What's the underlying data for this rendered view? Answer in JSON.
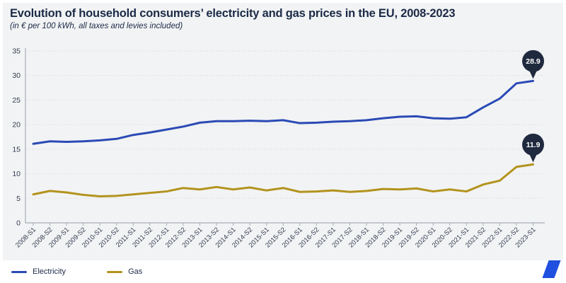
{
  "header": {
    "title": "Evolution of household consumers’ electricity and gas prices in the EU, 2008-2023",
    "subtitle": "(in € per 100 kWh, all taxes and levies included)"
  },
  "legend": [
    {
      "label": "Electricity",
      "color": "#2a4ab5"
    },
    {
      "label": "Gas",
      "color": "#b3931e"
    }
  ],
  "chart_data": {
    "type": "line",
    "categories": [
      "2008-S1",
      "2008-S2",
      "2009-S1",
      "2009-S2",
      "2010-S1",
      "2010-S2",
      "2011-S1",
      "2011-S2",
      "2012-S1",
      "2012-S2",
      "2013-S1",
      "2013-S2",
      "2014-S1",
      "2014-S2",
      "2015-S1",
      "2015-S2",
      "2016-S1",
      "2016-S2",
      "2017-S1",
      "2017-S2",
      "2018-S1",
      "2018-S2",
      "2019-S1",
      "2019-S2",
      "2020-S1",
      "2020-S2",
      "2021-S1",
      "2021-S2",
      "2022-S1",
      "2022-S2",
      "2023-S1"
    ],
    "series": [
      {
        "name": "Electricity",
        "color": "#2a4ab5",
        "values": [
          16.1,
          16.6,
          16.5,
          16.6,
          16.8,
          17.1,
          17.9,
          18.4,
          19.0,
          19.6,
          20.4,
          20.7,
          20.7,
          20.8,
          20.7,
          20.9,
          20.3,
          20.4,
          20.6,
          20.7,
          20.9,
          21.3,
          21.6,
          21.7,
          21.3,
          21.2,
          21.5,
          23.5,
          25.3,
          28.4,
          28.9
        ],
        "end_label": "28.9"
      },
      {
        "name": "Gas",
        "color": "#b3931e",
        "values": [
          5.8,
          6.5,
          6.2,
          5.7,
          5.4,
          5.5,
          5.8,
          6.1,
          6.4,
          7.1,
          6.8,
          7.3,
          6.8,
          7.2,
          6.6,
          7.1,
          6.3,
          6.4,
          6.6,
          6.3,
          6.5,
          6.9,
          6.8,
          7.0,
          6.4,
          6.8,
          6.4,
          7.8,
          8.6,
          11.4,
          11.9
        ],
        "end_label": "11.9"
      }
    ],
    "title": "Evolution of household consumers’ electricity and gas prices in the EU, 2008-2023",
    "xlabel": "",
    "ylabel": "",
    "ylim": [
      0,
      35
    ],
    "yticks": [
      0,
      5,
      10,
      15,
      20,
      25,
      30,
      35
    ],
    "grid": "horizontal-dotted",
    "legend_position": "bottom-left"
  },
  "colors": {
    "background": "#f2f3f4",
    "footer_background": "#ffffff",
    "title_text": "#1b2a47",
    "axis_line": "#a7adb8",
    "grid_line": "#d8d9dc",
    "tick_label": "#333c50",
    "badge_fill": "#202a3e",
    "badge_text": "#ffffff",
    "logo_blue": "#2050e0"
  },
  "footer": {
    "logo": "eurostat-slash-logo"
  }
}
